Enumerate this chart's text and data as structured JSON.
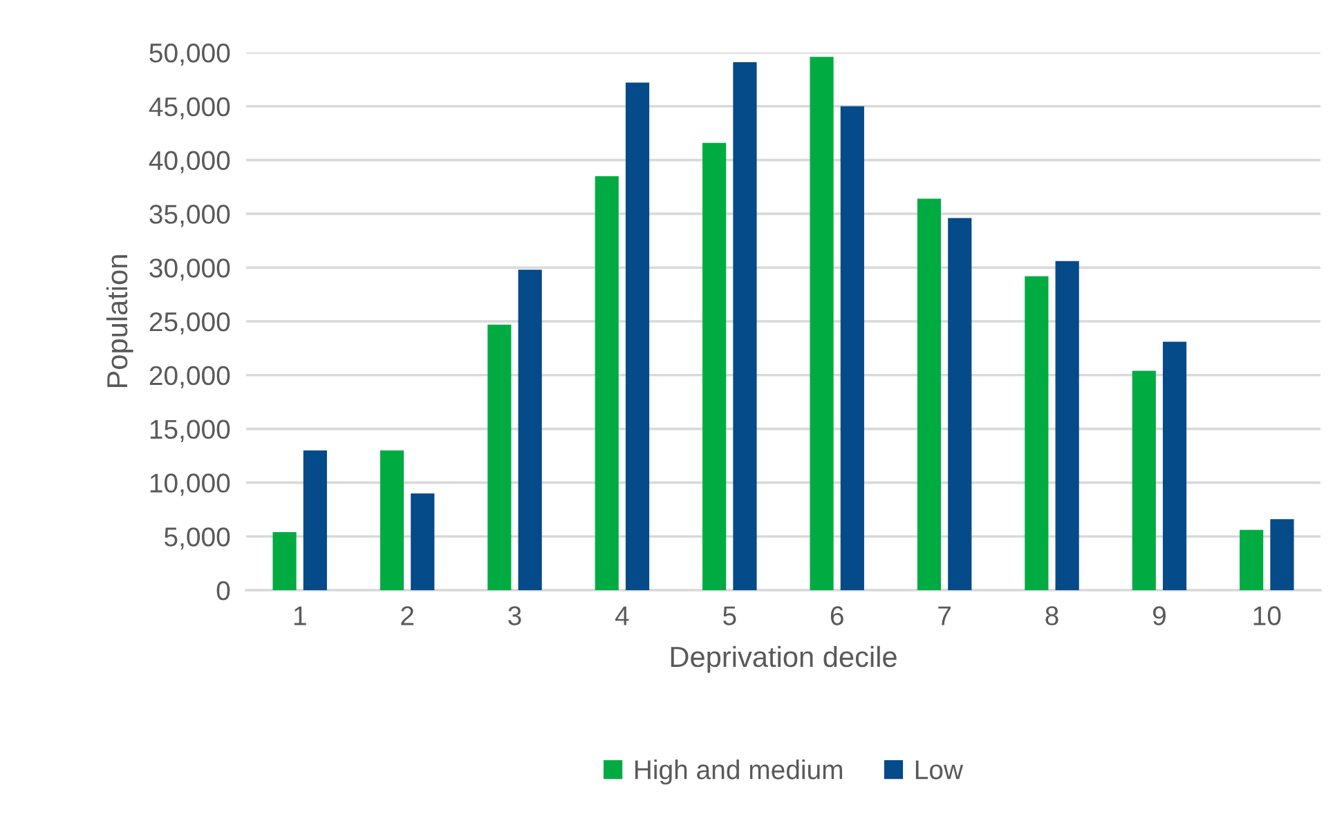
{
  "chart_data": {
    "type": "bar",
    "xlabel": "Deprivation decile",
    "ylabel": "Population",
    "categories": [
      "1",
      "2",
      "3",
      "4",
      "5",
      "6",
      "7",
      "8",
      "9",
      "10"
    ],
    "series": [
      {
        "name": "High and medium",
        "color": "#00ac41",
        "values": [
          5400,
          13000,
          24700,
          38500,
          41600,
          49600,
          36400,
          29200,
          20400,
          5600
        ]
      },
      {
        "name": "Low",
        "color": "#054a89",
        "values": [
          13000,
          9000,
          29800,
          47200,
          49100,
          45000,
          34600,
          30600,
          23100,
          6600
        ]
      }
    ],
    "ylim": [
      0,
      50000
    ],
    "yticks": [
      {
        "value": 0,
        "label": "0"
      },
      {
        "value": 5000,
        "label": "5,000"
      },
      {
        "value": 10000,
        "label": "10,000"
      },
      {
        "value": 15000,
        "label": "15,000"
      },
      {
        "value": 20000,
        "label": "20,000"
      },
      {
        "value": 25000,
        "label": "25,000"
      },
      {
        "value": 30000,
        "label": "30,000"
      },
      {
        "value": 35000,
        "label": "35,000"
      },
      {
        "value": 40000,
        "label": "40,000"
      },
      {
        "value": 45000,
        "label": "45,000"
      },
      {
        "value": 50000,
        "label": "50,000"
      }
    ],
    "grid": "y",
    "legend": "bottom"
  }
}
